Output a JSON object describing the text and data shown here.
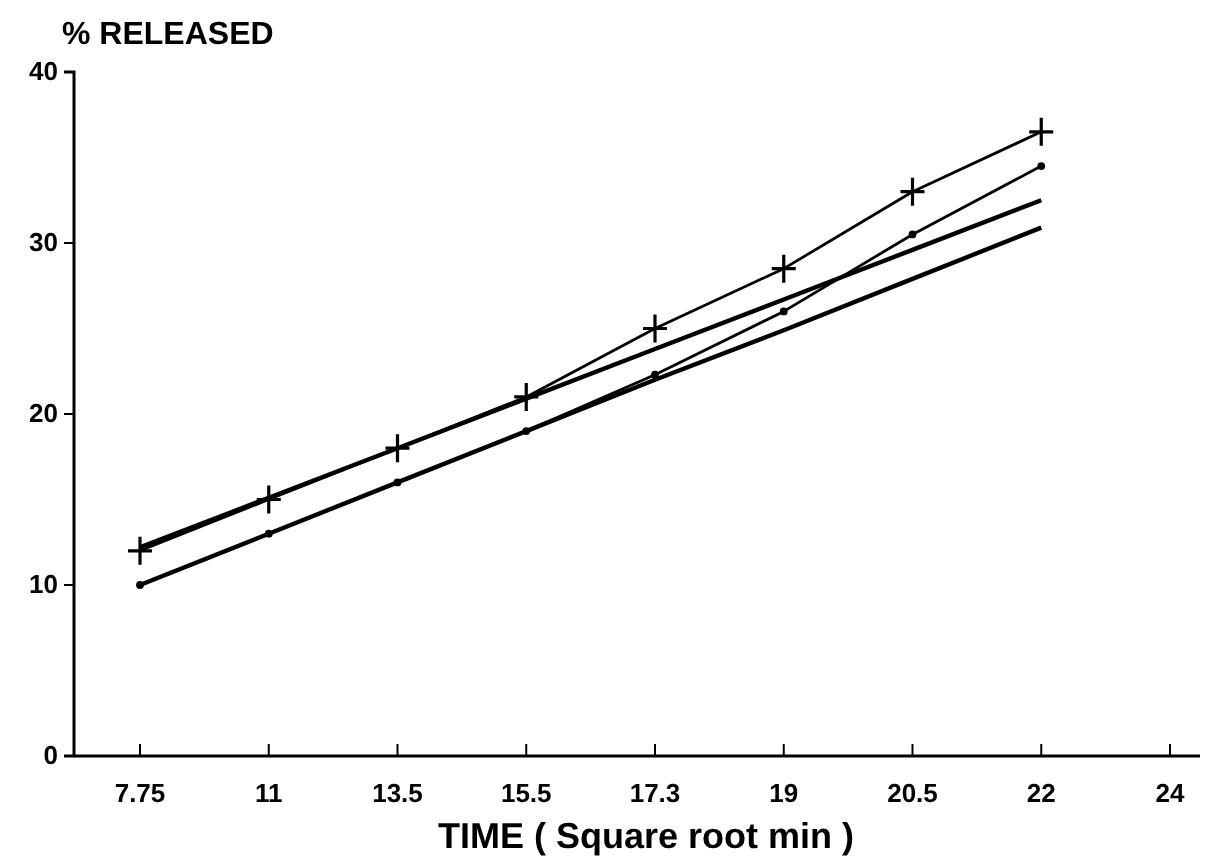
{
  "chart_data": {
    "type": "line",
    "ylabel": "% RELEASED",
    "xlabel": "TIME ( Square root min )",
    "categories": [
      "7.75",
      "11",
      "13.5",
      "15.5",
      "17.3",
      "19",
      "20.5",
      "22",
      "24"
    ],
    "ylim": [
      0,
      40
    ],
    "yticks": [
      0,
      10,
      20,
      30,
      40
    ],
    "grid": false,
    "line_style": "solid",
    "series": [
      {
        "color": "#000000",
        "marker": "cross",
        "values": [
          12,
          15,
          18,
          21,
          25,
          28.5,
          33,
          36.5,
          null
        ]
      },
      {
        "color": "#000000",
        "marker": "circle",
        "values": [
          10,
          13,
          16,
          19,
          22.3,
          26,
          30.5,
          34.5,
          null
        ]
      },
      {
        "color": "#000000",
        "marker": "none",
        "values": [
          12.2,
          15.1,
          18.0,
          20.9,
          23.8,
          26.7,
          29.6,
          32.5,
          null
        ]
      },
      {
        "color": "#000000",
        "marker": "none",
        "values": [
          10,
          13,
          16,
          19,
          22,
          24.9,
          27.9,
          30.9,
          null
        ]
      }
    ]
  }
}
